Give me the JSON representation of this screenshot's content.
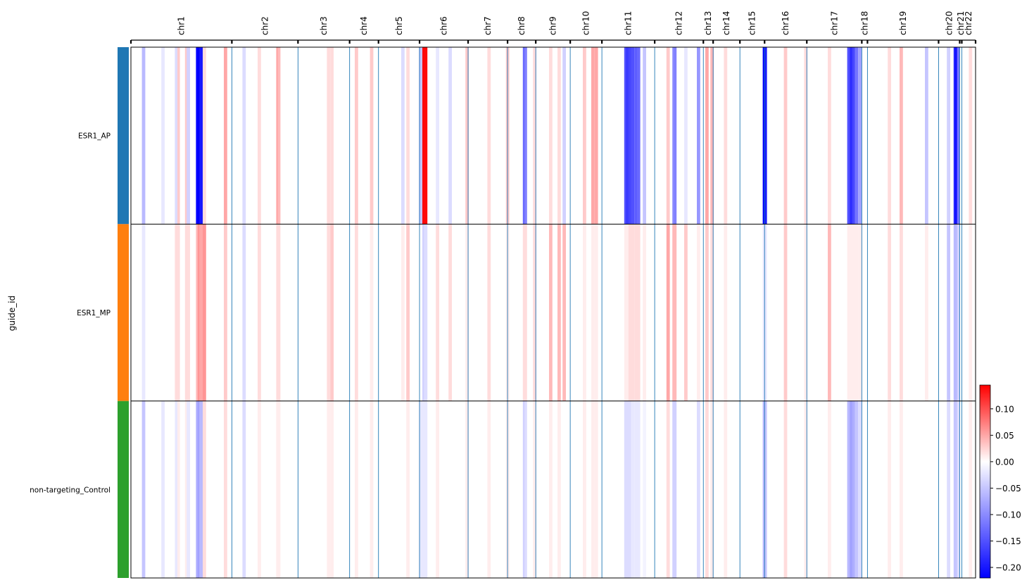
{
  "chart_data": {
    "type": "heatmap",
    "title": "",
    "ylabel": "guide_id",
    "groups": [
      {
        "name": "ESR1_AP",
        "color": "#1f77b4"
      },
      {
        "name": "ESR1_MP",
        "color": "#ff7f0e"
      },
      {
        "name": "non-targeting_Control",
        "color": "#2ca02c"
      }
    ],
    "chromosomes": [
      {
        "name": "chr1",
        "start": 0.0,
        "end": 0.1195
      },
      {
        "name": "chr2",
        "start": 0.1195,
        "end": 0.1978
      },
      {
        "name": "chr3",
        "start": 0.1978,
        "end": 0.2589
      },
      {
        "name": "chr4",
        "start": 0.2589,
        "end": 0.2931
      },
      {
        "name": "chr5",
        "start": 0.2931,
        "end": 0.3417
      },
      {
        "name": "chr6",
        "start": 0.3417,
        "end": 0.3992
      },
      {
        "name": "chr7",
        "start": 0.3992,
        "end": 0.4459
      },
      {
        "name": "chr8",
        "start": 0.4459,
        "end": 0.4793
      },
      {
        "name": "chr9",
        "start": 0.4793,
        "end": 0.5201
      },
      {
        "name": "chr10",
        "start": 0.5201,
        "end": 0.5576
      },
      {
        "name": "chr11",
        "start": 0.5576,
        "end": 0.6201
      },
      {
        "name": "chr12",
        "start": 0.6201,
        "end": 0.6777
      },
      {
        "name": "chr13",
        "start": 0.6777,
        "end": 0.6893
      },
      {
        "name": "chr14",
        "start": 0.6893,
        "end": 0.721
      },
      {
        "name": "chr15",
        "start": 0.721,
        "end": 0.7502
      },
      {
        "name": "chr16",
        "start": 0.7502,
        "end": 0.8002
      },
      {
        "name": "chr17",
        "start": 0.8002,
        "end": 0.8653
      },
      {
        "name": "chr18",
        "start": 0.8653,
        "end": 0.872
      },
      {
        "name": "chr19",
        "start": 0.872,
        "end": 0.9562
      },
      {
        "name": "chr20",
        "start": 0.9562,
        "end": 0.9812
      },
      {
        "name": "chr21",
        "start": 0.9812,
        "end": 0.9837
      },
      {
        "name": "chr22",
        "start": 0.9837,
        "end": 1.0
      }
    ],
    "colorbar": {
      "vmin": -0.22,
      "vmax": 0.145,
      "ticks": [
        -0.2,
        -0.15,
        -0.1,
        -0.05,
        0.0,
        0.05,
        0.1
      ],
      "tick_labels": [
        "−0.20",
        "−0.15",
        "−0.10",
        "−0.05",
        "0.00",
        "0.05",
        "0.10"
      ],
      "colormap": "bwr",
      "low_color": "#0000ff",
      "mid_color": "#ffffff",
      "high_color": "#ff0000"
    },
    "separator_color": "#1f77b4",
    "features": [
      {
        "pos": 0.013,
        "width": 0.004,
        "values": [
          -0.06,
          -0.02,
          -0.05
        ]
      },
      {
        "pos": 0.036,
        "width": 0.004,
        "values": [
          -0.02,
          0.0,
          -0.02
        ]
      },
      {
        "pos": 0.052,
        "width": 0.004,
        "values": [
          -0.03,
          0.02,
          -0.02
        ]
      },
      {
        "pos": 0.053,
        "width": 0.003,
        "values": [
          -0.03,
          0.02,
          -0.02
        ]
      },
      {
        "pos": 0.055,
        "width": 0.003,
        "values": [
          0.03,
          0.02,
          0.01
        ]
      },
      {
        "pos": 0.064,
        "width": 0.004,
        "values": [
          0.03,
          0.02,
          0.01
        ]
      },
      {
        "pos": 0.066,
        "width": 0.003,
        "values": [
          -0.04,
          0.02,
          -0.02
        ]
      },
      {
        "pos": 0.067,
        "width": 0.003,
        "values": [
          -0.04,
          0.02,
          -0.02
        ]
      },
      {
        "pos": 0.077,
        "width": 0.004,
        "values": [
          -0.22,
          0.04,
          -0.07
        ]
      },
      {
        "pos": 0.079,
        "width": 0.004,
        "values": [
          -0.22,
          0.06,
          -0.08
        ]
      },
      {
        "pos": 0.081,
        "width": 0.004,
        "values": [
          -0.2,
          0.05,
          -0.06
        ]
      },
      {
        "pos": 0.085,
        "width": 0.004,
        "values": [
          0.02,
          0.06,
          0.02
        ]
      },
      {
        "pos": 0.11,
        "width": 0.004,
        "values": [
          0.05,
          0.03,
          0.02
        ]
      },
      {
        "pos": 0.132,
        "width": 0.004,
        "values": [
          -0.03,
          -0.03,
          -0.03
        ]
      },
      {
        "pos": 0.15,
        "width": 0.004,
        "values": [
          0.02,
          0.02,
          0.01
        ]
      },
      {
        "pos": 0.172,
        "width": 0.004,
        "values": [
          0.05,
          0.02,
          0.01
        ]
      },
      {
        "pos": 0.174,
        "width": 0.003,
        "values": [
          0.04,
          0.02,
          0.01
        ]
      },
      {
        "pos": 0.232,
        "width": 0.004,
        "values": [
          0.02,
          0.02,
          0.01
        ]
      },
      {
        "pos": 0.236,
        "width": 0.004,
        "values": [
          0.02,
          0.03,
          0.01
        ]
      },
      {
        "pos": 0.265,
        "width": 0.004,
        "values": [
          0.03,
          0.02,
          0.01
        ]
      },
      {
        "pos": 0.283,
        "width": 0.004,
        "values": [
          0.03,
          0.01,
          0.01
        ]
      },
      {
        "pos": 0.32,
        "width": 0.004,
        "values": [
          -0.03,
          0.01,
          0.0
        ]
      },
      {
        "pos": 0.326,
        "width": 0.004,
        "values": [
          0.02,
          0.03,
          0.01
        ]
      },
      {
        "pos": 0.341,
        "width": 0.004,
        "values": [
          -0.05,
          0.0,
          -0.02
        ]
      },
      {
        "pos": 0.345,
        "width": 0.004,
        "values": [
          0.14,
          -0.04,
          -0.02
        ]
      },
      {
        "pos": 0.347,
        "width": 0.004,
        "values": [
          0.14,
          -0.03,
          -0.02
        ]
      },
      {
        "pos": 0.361,
        "width": 0.004,
        "values": [
          -0.02,
          0.02,
          0.01
        ]
      },
      {
        "pos": 0.376,
        "width": 0.004,
        "values": [
          -0.03,
          0.02,
          0.0
        ]
      },
      {
        "pos": 0.396,
        "width": 0.004,
        "values": [
          0.03,
          0.01,
          0.01
        ]
      },
      {
        "pos": 0.422,
        "width": 0.004,
        "values": [
          0.02,
          0.02,
          0.01
        ]
      },
      {
        "pos": 0.444,
        "width": 0.004,
        "values": [
          0.03,
          0.01,
          0.01
        ]
      },
      {
        "pos": 0.464,
        "width": 0.004,
        "values": [
          -0.13,
          0.02,
          -0.04
        ]
      },
      {
        "pos": 0.466,
        "width": 0.003,
        "values": [
          -0.11,
          0.02,
          -0.03
        ]
      },
      {
        "pos": 0.476,
        "width": 0.004,
        "values": [
          0.02,
          0.02,
          0.01
        ]
      },
      {
        "pos": 0.495,
        "width": 0.004,
        "values": [
          0.02,
          0.04,
          0.01
        ]
      },
      {
        "pos": 0.505,
        "width": 0.004,
        "values": [
          0.02,
          0.04,
          0.01
        ]
      },
      {
        "pos": 0.511,
        "width": 0.004,
        "values": [
          -0.04,
          0.04,
          0.0
        ]
      },
      {
        "pos": 0.535,
        "width": 0.004,
        "values": [
          0.03,
          0.01,
          0.01
        ]
      },
      {
        "pos": 0.545,
        "width": 0.004,
        "values": [
          0.05,
          0.01,
          0.01
        ]
      },
      {
        "pos": 0.549,
        "width": 0.004,
        "values": [
          0.05,
          0.01,
          0.01
        ]
      },
      {
        "pos": 0.584,
        "width": 0.004,
        "values": [
          -0.15,
          0.01,
          -0.03
        ]
      },
      {
        "pos": 0.586,
        "width": 0.004,
        "values": [
          -0.17,
          0.01,
          -0.03
        ]
      },
      {
        "pos": 0.589,
        "width": 0.004,
        "values": [
          -0.16,
          0.02,
          -0.03
        ]
      },
      {
        "pos": 0.592,
        "width": 0.004,
        "values": [
          -0.15,
          0.02,
          -0.02
        ]
      },
      {
        "pos": 0.596,
        "width": 0.004,
        "values": [
          -0.14,
          0.02,
          -0.02
        ]
      },
      {
        "pos": 0.599,
        "width": 0.004,
        "values": [
          -0.13,
          0.02,
          -0.02
        ]
      },
      {
        "pos": 0.606,
        "width": 0.004,
        "values": [
          -0.05,
          0.01,
          -0.01
        ]
      },
      {
        "pos": 0.634,
        "width": 0.004,
        "values": [
          0.03,
          0.05,
          0.02
        ]
      },
      {
        "pos": 0.641,
        "width": 0.004,
        "values": [
          -0.1,
          0.04,
          -0.04
        ]
      },
      {
        "pos": 0.643,
        "width": 0.003,
        "values": [
          -0.11,
          0.04,
          -0.04
        ]
      },
      {
        "pos": 0.655,
        "width": 0.004,
        "values": [
          -0.02,
          0.03,
          0.0
        ]
      },
      {
        "pos": 0.67,
        "width": 0.004,
        "values": [
          -0.09,
          0.01,
          -0.03
        ]
      },
      {
        "pos": 0.68,
        "width": 0.004,
        "values": [
          0.05,
          0.03,
          0.02
        ]
      },
      {
        "pos": 0.686,
        "width": 0.004,
        "values": [
          0.04,
          0.02,
          0.01
        ]
      },
      {
        "pos": 0.702,
        "width": 0.004,
        "values": [
          0.02,
          0.01,
          0.01
        ]
      },
      {
        "pos": 0.748,
        "width": 0.004,
        "values": [
          -0.22,
          -0.02,
          -0.06
        ]
      },
      {
        "pos": 0.75,
        "width": 0.003,
        "values": [
          -0.2,
          -0.02,
          -0.05
        ]
      },
      {
        "pos": 0.773,
        "width": 0.004,
        "values": [
          0.03,
          0.03,
          0.02
        ]
      },
      {
        "pos": 0.797,
        "width": 0.004,
        "values": [
          0.02,
          0.01,
          0.01
        ]
      },
      {
        "pos": 0.825,
        "width": 0.004,
        "values": [
          0.02,
          0.04,
          0.01
        ]
      },
      {
        "pos": 0.848,
        "width": 0.004,
        "values": [
          -0.15,
          0.01,
          -0.06
        ]
      },
      {
        "pos": 0.851,
        "width": 0.004,
        "values": [
          -0.18,
          0.01,
          -0.08
        ]
      },
      {
        "pos": 0.854,
        "width": 0.004,
        "values": [
          -0.16,
          0.01,
          -0.07
        ]
      },
      {
        "pos": 0.857,
        "width": 0.004,
        "values": [
          -0.12,
          0.01,
          -0.05
        ]
      },
      {
        "pos": 0.861,
        "width": 0.004,
        "values": [
          -0.08,
          0.01,
          -0.03
        ]
      },
      {
        "pos": 0.896,
        "width": 0.004,
        "values": [
          0.02,
          0.02,
          0.01
        ]
      },
      {
        "pos": 0.91,
        "width": 0.004,
        "values": [
          0.04,
          0.02,
          0.01
        ]
      },
      {
        "pos": 0.94,
        "width": 0.004,
        "values": [
          -0.05,
          0.01,
          0.0
        ]
      },
      {
        "pos": 0.966,
        "width": 0.004,
        "values": [
          -0.04,
          -0.05,
          -0.03
        ]
      },
      {
        "pos": 0.974,
        "width": 0.004,
        "values": [
          -0.19,
          -0.06,
          -0.05
        ]
      },
      {
        "pos": 0.976,
        "width": 0.003,
        "values": [
          -0.21,
          -0.06,
          -0.05
        ]
      },
      {
        "pos": 0.978,
        "width": 0.003,
        "values": [
          -0.12,
          -0.04,
          -0.03
        ]
      },
      {
        "pos": 0.992,
        "width": 0.004,
        "values": [
          0.02,
          0.01,
          0.01
        ]
      }
    ]
  }
}
